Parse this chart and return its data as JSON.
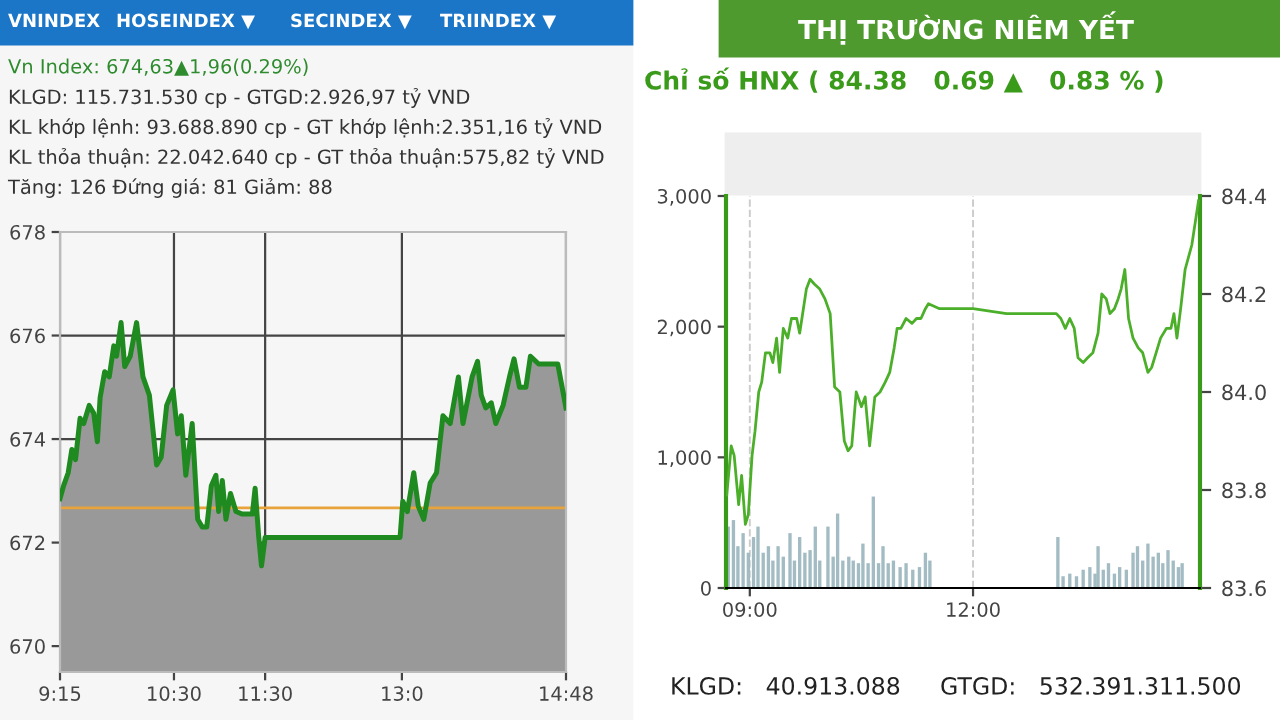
{
  "chart_data": [
    {
      "type": "area",
      "title": "Vn Index: 674,63▲1,96(0.29%)",
      "annotations": [
        "VNINDEX",
        "HOSEINDEX ▼",
        "SECINDEX ▼",
        "TRIINDEX ▼",
        "KLGD: 115.731.530 cp - GTGD:2.926,97 tỷ VND",
        "KL khớp lệnh: 93.688.890 cp - GT khớp lệnh:2.351,16 tỷ VND",
        "KL thỏa thuận: 22.042.640 cp - GT thỏa thuận:575,82 tỷ VND",
        "Tăng: 126 Đứng giá: 81 Giảm: 88"
      ],
      "x": [
        9.25,
        9.29,
        9.34,
        9.38,
        9.42,
        9.47,
        9.51,
        9.57,
        9.62,
        9.66,
        9.69,
        9.74,
        9.79,
        9.84,
        9.87,
        9.92,
        9.96,
        10.02,
        10.09,
        10.16,
        10.23,
        10.31,
        10.36,
        10.42,
        10.49,
        10.54,
        10.58,
        10.63,
        10.7,
        10.76,
        10.81,
        10.86,
        10.91,
        10.96,
        10.99,
        11.03,
        11.07,
        11.12,
        11.18,
        11.25,
        11.36,
        11.39,
        11.43,
        11.46,
        11.5,
        12.98,
        13.01,
        13.06,
        13.13,
        13.18,
        13.24,
        13.31,
        13.38,
        13.45,
        13.53,
        13.62,
        13.67,
        13.77,
        13.83,
        13.87,
        13.92,
        13.98,
        14.03,
        14.11,
        14.18,
        14.23,
        14.29,
        14.36,
        14.41,
        14.5,
        14.71,
        14.8
      ],
      "series": [
        {
          "color": "#1f8a1f",
          "values": [
            672.85,
            673.1,
            673.35,
            673.8,
            673.6,
            674.4,
            674.3,
            674.65,
            674.5,
            673.95,
            674.8,
            675.3,
            675.2,
            675.8,
            675.6,
            676.25,
            675.4,
            675.6,
            676.25,
            675.2,
            674.85,
            673.5,
            673.65,
            674.65,
            674.95,
            674.1,
            674.45,
            673.3,
            674.3,
            672.45,
            672.3,
            672.3,
            673.1,
            673.3,
            672.6,
            673.2,
            672.45,
            672.95,
            672.6,
            672.55,
            672.55,
            673.05,
            672.1,
            671.55,
            672.1,
            672.1,
            672.8,
            672.6,
            673.35,
            672.7,
            672.45,
            673.15,
            673.35,
            674.45,
            674.3,
            675.2,
            674.3,
            675.2,
            675.5,
            674.85,
            674.6,
            674.7,
            674.3,
            674.65,
            675.2,
            675.55,
            675.0,
            675.0,
            675.6,
            675.45,
            675.45,
            674.6
          ]
        }
      ],
      "xlim": [
        9.25,
        14.8
      ],
      "xticks": [
        {
          "value": 9.25,
          "label": "9:15"
        },
        {
          "value": 10.5,
          "label": "10:30"
        },
        {
          "value": 11.5,
          "label": "11:30"
        },
        {
          "value": 13,
          "label": "13:0"
        },
        {
          "value": 14.8,
          "label": "14:48"
        }
      ],
      "ylim": [
        669.5,
        678
      ],
      "yticks": [
        670,
        672,
        674,
        676,
        678
      ],
      "ref_lines": [
        {
          "axis": "y",
          "value": 672.67,
          "color": "#e8a33a"
        }
      ],
      "grid": true,
      "legend": false
    },
    {
      "type": "bar",
      "title": "THỊ TRƯỜNG NIÊM YẾT",
      "subtitle": "Chỉ số HNX ( 84.38   0.69 ▲   0.83 % )",
      "annotations": [
        "KLGD:   40.913.088",
        "GTGD:   532.391.311.500"
      ],
      "series": [
        {
          "type": "bar",
          "color": "#a3bcc4",
          "x": [
            8.71,
            8.78,
            8.84,
            8.91,
            8.98,
            9.05,
            9.11,
            9.18,
            9.25,
            9.31,
            9.38,
            9.45,
            9.54,
            9.6,
            9.67,
            9.74,
            9.81,
            9.88,
            9.94,
            10.05,
            10.12,
            10.18,
            10.25,
            10.33,
            10.39,
            10.46,
            10.52,
            10.59,
            10.66,
            10.73,
            10.79,
            10.86,
            10.93,
            11.02,
            11.1,
            11.19,
            11.28,
            11.36,
            11.42,
            13.14,
            13.21,
            13.3,
            13.39,
            13.48,
            13.57,
            13.64,
            13.68,
            13.75,
            13.82,
            13.9,
            13.97,
            14.06,
            14.15,
            14.21,
            14.28,
            14.35,
            14.42,
            14.49,
            14.55,
            14.62,
            14.69,
            14.76,
            14.81
          ],
          "values": [
            470,
            520,
            320,
            420,
            270,
            390,
            470,
            270,
            320,
            210,
            320,
            240,
            420,
            210,
            390,
            270,
            290,
            470,
            210,
            470,
            240,
            570,
            210,
            240,
            210,
            190,
            340,
            190,
            700,
            190,
            320,
            190,
            210,
            160,
            190,
            140,
            160,
            270,
            210,
            390,
            90,
            110,
            90,
            140,
            160,
            110,
            320,
            140,
            190,
            110,
            160,
            140,
            270,
            320,
            210,
            340,
            240,
            270,
            190,
            290,
            210,
            160,
            190
          ]
        },
        {
          "type": "line",
          "axis": "y2",
          "color": "#4caf2a",
          "x": [
            8.69,
            8.75,
            8.79,
            8.85,
            8.89,
            8.94,
            8.98,
            9.03,
            9.07,
            9.12,
            9.16,
            9.21,
            9.27,
            9.31,
            9.36,
            9.4,
            9.45,
            9.51,
            9.56,
            9.63,
            9.67,
            9.72,
            9.76,
            9.81,
            9.87,
            9.94,
            10.01,
            10.08,
            10.14,
            10.21,
            10.27,
            10.32,
            10.37,
            10.43,
            10.5,
            10.55,
            10.61,
            10.68,
            10.75,
            10.82,
            10.88,
            10.94,
            10.98,
            11.03,
            11.1,
            11.18,
            11.24,
            11.3,
            11.36,
            11.4,
            11.55,
            12.0,
            12.45,
            12.9,
            13.12,
            13.18,
            13.24,
            13.3,
            13.36,
            13.41,
            13.48,
            13.54,
            13.61,
            13.68,
            13.73,
            13.79,
            13.84,
            13.9,
            13.95,
            13.99,
            14.04,
            14.09,
            14.15,
            14.22,
            14.28,
            14.35,
            14.4,
            14.46,
            14.52,
            14.6,
            14.66,
            14.7,
            14.74,
            14.79,
            14.85,
            14.94,
            15.03
          ],
          "values": [
            83.79,
            83.89,
            83.87,
            83.77,
            83.83,
            83.73,
            83.75,
            83.87,
            83.92,
            84.0,
            84.02,
            84.08,
            84.08,
            84.06,
            84.11,
            84.04,
            84.13,
            84.11,
            84.15,
            84.15,
            84.12,
            84.17,
            84.21,
            84.23,
            84.22,
            84.21,
            84.19,
            84.16,
            84.01,
            84.0,
            83.9,
            83.88,
            83.89,
            84.0,
            83.97,
            83.99,
            83.89,
            83.99,
            84.0,
            84.02,
            84.04,
            84.09,
            84.13,
            84.13,
            84.15,
            84.14,
            84.15,
            84.15,
            84.17,
            84.18,
            84.17,
            84.17,
            84.16,
            84.16,
            84.16,
            84.15,
            84.13,
            84.15,
            84.13,
            84.07,
            84.06,
            84.07,
            84.08,
            84.12,
            84.2,
            84.19,
            84.16,
            84.17,
            84.19,
            84.21,
            84.25,
            84.15,
            84.11,
            84.09,
            84.08,
            84.04,
            84.05,
            84.08,
            84.11,
            84.13,
            84.13,
            84.16,
            84.11,
            84.17,
            84.25,
            84.3,
            84.39
          ]
        }
      ],
      "xlim": [
        8.68,
        15.05
      ],
      "xticks": [
        {
          "value": 9,
          "label": "09:00"
        },
        {
          "value": 12,
          "label": "12:00"
        }
      ],
      "ylim": [
        0,
        3000
      ],
      "yticks": [
        0,
        {
          "value": 1000,
          "label": "1,000"
        },
        {
          "value": 2000,
          "label": "2,000"
        },
        {
          "value": 3000,
          "label": "3,000"
        }
      ],
      "y2lim": [
        83.6,
        84.4
      ],
      "y2ticks": [
        83.6,
        83.8,
        {
          "value": 84,
          "label": "84.0"
        },
        84.2,
        84.4
      ],
      "grid": "x",
      "legend": false
    }
  ]
}
